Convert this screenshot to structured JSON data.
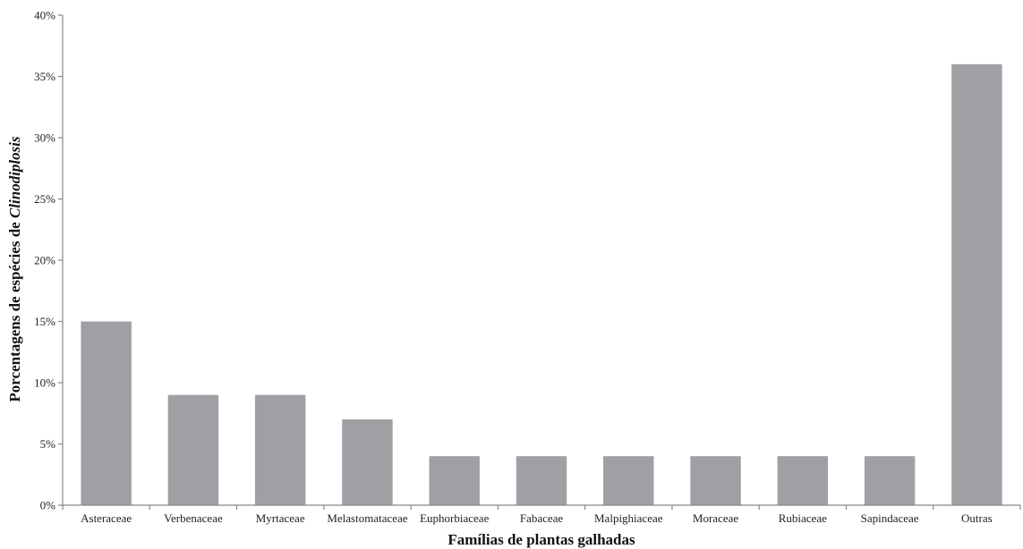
{
  "chart_data": {
    "type": "bar",
    "categories": [
      "Asteraceae",
      "Verbenaceae",
      "Myrtaceae",
      "Melastomataceae",
      "Euphorbiaceae",
      "Fabaceae",
      "Malpighiaceae",
      "Moraceae",
      "Rubiaceae",
      "Sapindaceae",
      "Outras"
    ],
    "values": [
      15,
      9,
      9,
      7,
      4,
      4,
      4,
      4,
      4,
      4,
      36
    ],
    "xlabel": "Famílias de plantas galhadas",
    "ylabel_prefix": "Porcentagens de espécies de ",
    "ylabel_italic": "Clinodiplosis",
    "ylim": [
      0,
      40
    ],
    "yticks": [
      "0%",
      "5%",
      "10%",
      "15%",
      "20%",
      "25%",
      "30%",
      "35%",
      "40%"
    ],
    "grid": false,
    "bar_color": "#9ea0a4"
  }
}
